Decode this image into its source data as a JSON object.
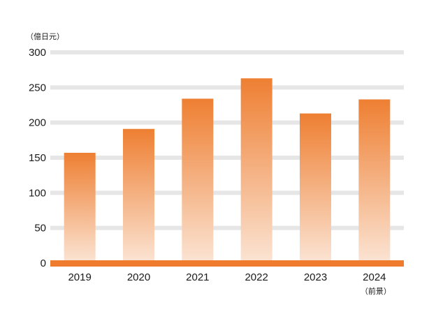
{
  "chart_data": {
    "type": "bar",
    "title": "",
    "xlabel": "",
    "ylabel": "",
    "y_unit_label": "（億日元）",
    "categories": [
      "2019",
      "2020",
      "2021",
      "2022",
      "2023",
      "2024"
    ],
    "category_notes": [
      "",
      "",
      "",
      "",
      "",
      "（前景）"
    ],
    "values": [
      157,
      191,
      234,
      263,
      213,
      233
    ],
    "ylim": [
      0,
      300
    ],
    "yticks": [
      0,
      50,
      100,
      150,
      200,
      250,
      300
    ],
    "grid": true,
    "legend": "none",
    "colors": {
      "bar_top": "#ee7f32",
      "bar_bottom": "#fbe3d2",
      "gridline": "#e6e6e6",
      "baseline": "#ef7b2e",
      "text": "#1a1a1a"
    }
  }
}
